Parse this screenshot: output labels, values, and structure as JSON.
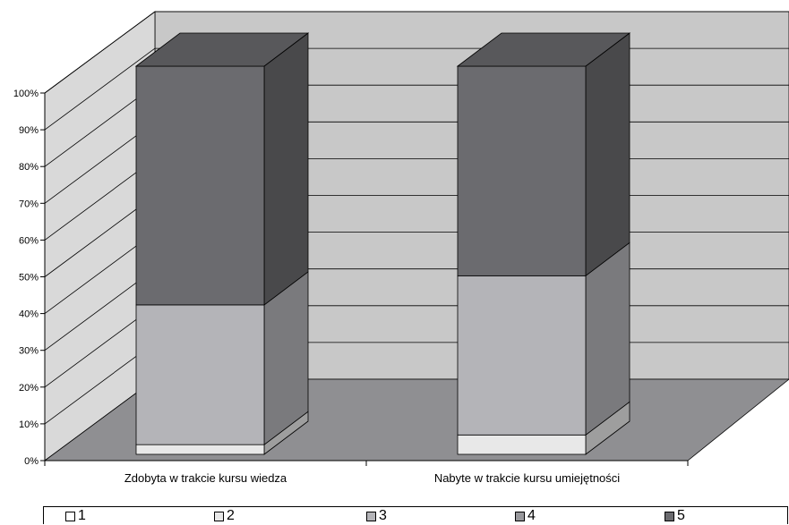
{
  "chart_data": {
    "type": "bar",
    "stacked": true,
    "three_d": true,
    "categories": [
      "Zdobyta w trakcie kursu wiedza",
      "Nabyte w trakcie kursu umiejętności"
    ],
    "series": [
      {
        "name": "1",
        "values": [
          0,
          0
        ],
        "color": "#ffffff"
      },
      {
        "name": "2",
        "values": [
          2.5,
          5
        ],
        "color": "#e8e8e8"
      },
      {
        "name": "3",
        "values": [
          36,
          41
        ],
        "color": "#b4b4b8"
      },
      {
        "name": "4",
        "values": [
          0,
          0
        ],
        "color": "#98989c"
      },
      {
        "name": "5",
        "values": [
          61.5,
          54
        ],
        "color": "#6b6b6f"
      }
    ],
    "y_ticks": [
      "0%",
      "10%",
      "20%",
      "30%",
      "40%",
      "50%",
      "60%",
      "70%",
      "80%",
      "90%",
      "100%"
    ],
    "ylim": [
      0,
      100
    ],
    "grid": true,
    "legend_position": "bottom"
  }
}
